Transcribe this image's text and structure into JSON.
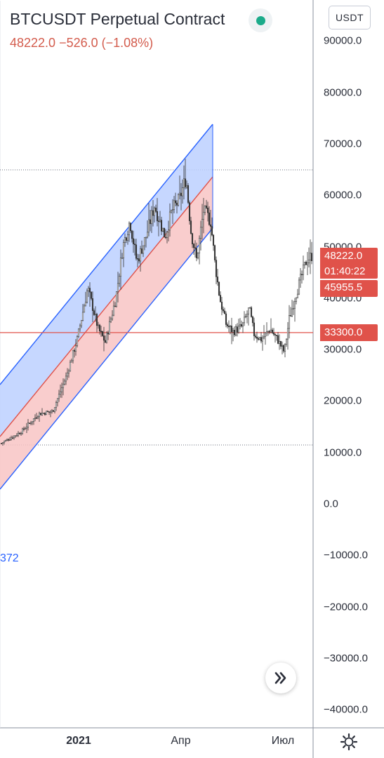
{
  "header": {
    "title": "BTCUSDT Perpetual Contract",
    "quote": "48222.0  −526.0 (−1.08%)",
    "status_color": "#1bab8a"
  },
  "toolbar": {
    "currency_label": "USDT"
  },
  "price_axis": {
    "ticks": [
      {
        "value": 90000,
        "label": "90000.0"
      },
      {
        "value": 80000,
        "label": "80000.0"
      },
      {
        "value": 70000,
        "label": "70000.0"
      },
      {
        "value": 60000,
        "label": "60000.0"
      },
      {
        "value": 50000,
        "label": "50000.0"
      },
      {
        "value": 40000,
        "label": "40000.0"
      },
      {
        "value": 30000,
        "label": "30000.0"
      },
      {
        "value": 20000,
        "label": "20000.0"
      },
      {
        "value": 10000,
        "label": "10000.0"
      },
      {
        "value": 0,
        "label": "0.0"
      },
      {
        "value": -10000,
        "label": "−10000.0"
      },
      {
        "value": -20000,
        "label": "−20000.0"
      },
      {
        "value": -30000,
        "label": "−30000.0"
      },
      {
        "value": -40000,
        "label": "−40000.0"
      }
    ]
  },
  "time_axis": {
    "ticks": [
      {
        "label": "2021",
        "date": "2021-01",
        "bold": true
      },
      {
        "label": "Апр",
        "date": "2021-04",
        "bold": false
      },
      {
        "label": "Июл",
        "date": "2021-07",
        "bold": false
      }
    ]
  },
  "price_tags": {
    "last_price": "48222.0",
    "countdown": "01:40:22",
    "second_price": "45955.5",
    "horizontal_line_price": "33300.0"
  },
  "left_label": "372",
  "colors": {
    "up": "#26a69a",
    "down": "#ef5350",
    "candle": "#333333",
    "channel_upper_fill": "#bcd0ff",
    "channel_lower_fill": "#f8c4c4",
    "channel_line": "#2962ff",
    "channel_mid": "#e0524a",
    "hline": "#e0524a",
    "tag": "#e0524a"
  },
  "icons": {
    "scroll_to_latest": "double-chevron-right-icon",
    "settings": "gear-icon"
  }
}
